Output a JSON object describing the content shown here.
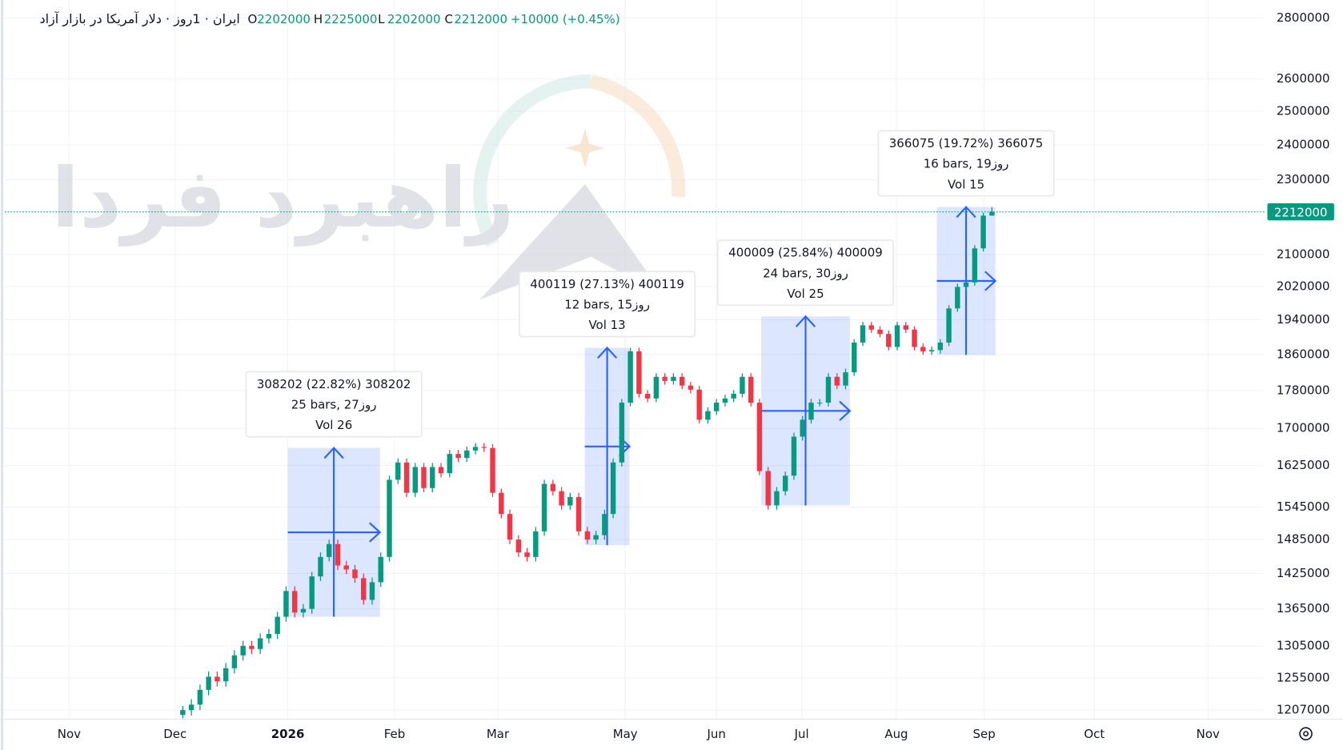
{
  "chart_data": {
    "type": "candlestick",
    "symbol": "ایران · 1روز · دلار آمریکا در بازار آزاد",
    "ohlc_labels": [
      "O",
      "H",
      "L",
      "C"
    ],
    "change_text": "+10000 (+0.45%)",
    "watermark": "راهبرد فردا",
    "log_scale": true,
    "grid": true,
    "up_color": "#089981",
    "down_color": "#f23645",
    "measure_color": "#2962ff",
    "xlim": [
      -20.7,
      125.5
    ],
    "xticks": [
      {
        "value": -13.2,
        "label": "Nov"
      },
      {
        "value": -0.9,
        "label": "Dec"
      },
      {
        "value": 12.2,
        "label": "2026"
      },
      {
        "value": 24.6,
        "label": "Feb"
      },
      {
        "value": 36.6,
        "label": "Mar"
      },
      {
        "value": 51.4,
        "label": "May"
      },
      {
        "value": 62.0,
        "label": "Jun"
      },
      {
        "value": 71.9,
        "label": "Jul"
      },
      {
        "value": 82.9,
        "label": "Aug"
      },
      {
        "value": 93.1,
        "label": "Sep"
      },
      {
        "value": 105.9,
        "label": "Oct"
      },
      {
        "value": 119.1,
        "label": "Nov"
      }
    ],
    "ylim": [
      1193700,
      2862000
    ],
    "yticks": [
      1207000,
      1255000,
      1305000,
      1365000,
      1425000,
      1485000,
      1545000,
      1625000,
      1700000,
      1780000,
      1860000,
      1940000,
      2020000,
      2100000,
      2300000,
      2400000,
      2500000,
      2600000,
      2800000
    ],
    "candles": [
      [
        1200000,
        1213000,
        1195000,
        1207000
      ],
      [
        1207000,
        1223000,
        1199000,
        1215000
      ],
      [
        1215000,
        1245000,
        1207000,
        1237000
      ],
      [
        1237000,
        1265000,
        1229000,
        1257000
      ],
      [
        1257000,
        1265000,
        1242000,
        1250000
      ],
      [
        1250000,
        1278000,
        1242000,
        1270000
      ],
      [
        1270000,
        1298000,
        1262000,
        1290000
      ],
      [
        1290000,
        1313000,
        1282000,
        1305000
      ],
      [
        1305000,
        1313000,
        1292000,
        1300000
      ],
      [
        1300000,
        1325000,
        1292000,
        1317000
      ],
      [
        1317000,
        1332000,
        1309000,
        1324000
      ],
      [
        1324000,
        1360000,
        1316000,
        1352000
      ],
      [
        1352000,
        1403000,
        1344000,
        1395000
      ],
      [
        1395000,
        1403000,
        1351000,
        1359000
      ],
      [
        1359000,
        1373000,
        1351000,
        1365000
      ],
      [
        1365000,
        1428000,
        1357000,
        1420000
      ],
      [
        1420000,
        1462000,
        1412000,
        1454000
      ],
      [
        1454000,
        1485000,
        1446000,
        1477000
      ],
      [
        1477000,
        1485000,
        1431000,
        1439000
      ],
      [
        1439000,
        1447000,
        1424000,
        1432000
      ],
      [
        1432000,
        1440000,
        1409000,
        1417000
      ],
      [
        1417000,
        1425000,
        1372000,
        1380000
      ],
      [
        1380000,
        1418000,
        1372000,
        1410000
      ],
      [
        1410000,
        1462000,
        1402000,
        1454000
      ],
      [
        1454000,
        1605000,
        1446000,
        1597000
      ],
      [
        1597000,
        1639000,
        1589000,
        1631000
      ],
      [
        1631000,
        1639000,
        1564000,
        1572000
      ],
      [
        1572000,
        1630000,
        1564000,
        1622000
      ],
      [
        1622000,
        1630000,
        1573000,
        1581000
      ],
      [
        1581000,
        1630000,
        1573000,
        1622000
      ],
      [
        1622000,
        1630000,
        1602000,
        1610000
      ],
      [
        1610000,
        1656000,
        1602000,
        1648000
      ],
      [
        1648000,
        1656000,
        1632000,
        1640000
      ],
      [
        1640000,
        1663000,
        1632000,
        1655000
      ],
      [
        1655000,
        1670000,
        1647000,
        1662000
      ],
      [
        1662000,
        1670000,
        1652000,
        1660000
      ],
      [
        1660000,
        1668000,
        1564000,
        1572000
      ],
      [
        1572000,
        1580000,
        1524000,
        1532000
      ],
      [
        1532000,
        1540000,
        1477000,
        1485000
      ],
      [
        1485000,
        1493000,
        1454000,
        1462000
      ],
      [
        1462000,
        1470000,
        1446000,
        1454000
      ],
      [
        1454000,
        1508000,
        1446000,
        1500000
      ],
      [
        1500000,
        1597000,
        1492000,
        1589000
      ],
      [
        1589000,
        1597000,
        1567000,
        1575000
      ],
      [
        1575000,
        1583000,
        1540000,
        1548000
      ],
      [
        1548000,
        1572000,
        1540000,
        1564000
      ],
      [
        1564000,
        1572000,
        1492000,
        1500000
      ],
      [
        1500000,
        1508000,
        1477000,
        1485000
      ],
      [
        1485000,
        1501000,
        1477000,
        1493000
      ],
      [
        1493000,
        1540000,
        1485000,
        1532000
      ],
      [
        1532000,
        1639000,
        1524000,
        1631000
      ],
      [
        1631000,
        1762000,
        1623000,
        1754000
      ],
      [
        1754000,
        1875000,
        1746000,
        1867000
      ],
      [
        1867000,
        1875000,
        1765000,
        1773000
      ],
      [
        1773000,
        1781000,
        1755000,
        1763000
      ],
      [
        1763000,
        1818000,
        1755000,
        1810000
      ],
      [
        1810000,
        1818000,
        1793000,
        1801000
      ],
      [
        1801000,
        1818000,
        1793000,
        1810000
      ],
      [
        1810000,
        1818000,
        1783000,
        1791000
      ],
      [
        1791000,
        1799000,
        1774000,
        1782000
      ],
      [
        1782000,
        1790000,
        1710000,
        1718000
      ],
      [
        1718000,
        1744000,
        1710000,
        1736000
      ],
      [
        1736000,
        1762000,
        1728000,
        1754000
      ],
      [
        1754000,
        1771000,
        1746000,
        1763000
      ],
      [
        1763000,
        1781000,
        1755000,
        1773000
      ],
      [
        1773000,
        1818000,
        1765000,
        1810000
      ],
      [
        1810000,
        1818000,
        1746000,
        1754000
      ],
      [
        1754000,
        1762000,
        1606000,
        1614000
      ],
      [
        1614000,
        1622000,
        1540000,
        1548000
      ],
      [
        1548000,
        1583000,
        1540000,
        1575000
      ],
      [
        1575000,
        1613000,
        1567000,
        1605000
      ],
      [
        1605000,
        1691000,
        1597000,
        1683000
      ],
      [
        1683000,
        1726000,
        1675000,
        1718000
      ],
      [
        1718000,
        1762000,
        1710000,
        1754000
      ],
      [
        1754000,
        1762000,
        1746000,
        1754000
      ],
      [
        1754000,
        1818000,
        1746000,
        1810000
      ],
      [
        1810000,
        1818000,
        1783000,
        1791000
      ],
      [
        1791000,
        1828000,
        1783000,
        1820000
      ],
      [
        1820000,
        1895000,
        1812000,
        1887000
      ],
      [
        1887000,
        1935000,
        1879000,
        1927000
      ],
      [
        1927000,
        1935000,
        1909000,
        1917000
      ],
      [
        1917000,
        1925000,
        1899000,
        1907000
      ],
      [
        1907000,
        1915000,
        1869000,
        1877000
      ],
      [
        1877000,
        1935000,
        1869000,
        1927000
      ],
      [
        1927000,
        1935000,
        1909000,
        1917000
      ],
      [
        1917000,
        1925000,
        1869000,
        1877000
      ],
      [
        1877000,
        1885000,
        1859000,
        1867000
      ],
      [
        1867000,
        1878000,
        1859000,
        1870000
      ],
      [
        1870000,
        1895000,
        1862000,
        1887000
      ],
      [
        1887000,
        1975000,
        1879000,
        1967000
      ],
      [
        1967000,
        2027000,
        1959000,
        2019000
      ],
      [
        2019000,
        2038000,
        2011000,
        2030000
      ],
      [
        2030000,
        2124000,
        2022000,
        2116000
      ],
      [
        2116000,
        2210000,
        2108000,
        2202000
      ],
      [
        2202000,
        2225000,
        2202000,
        2212000
      ]
    ],
    "measures": [
      {
        "lines": [
          "308202 (22.82%) 308202",
          "25 bars, 27روز",
          "Vol 26"
        ],
        "x0": 12.2,
        "x1": 22.9,
        "y0": 1352000,
        "y1": 1660202
      },
      {
        "lines": [
          "400119 (27.13%) 400119",
          "12 bars, 15روز",
          "Vol 13"
        ],
        "x0": 46.7,
        "x1": 51.9,
        "y0": 1475000,
        "y1": 1875119
      },
      {
        "lines": [
          "400009 (25.84%) 400009",
          "24 bars, 30روز",
          "Vol 25"
        ],
        "x0": 67.2,
        "x1": 77.5,
        "y0": 1548000,
        "y1": 1948009
      },
      {
        "lines": [
          "366075 (19.72%) 366075",
          "16 bars, 19روز",
          "Vol 15"
        ],
        "x0": 87.6,
        "x1": 94.4,
        "y0": 1859000,
        "y1": 2225075
      }
    ]
  }
}
